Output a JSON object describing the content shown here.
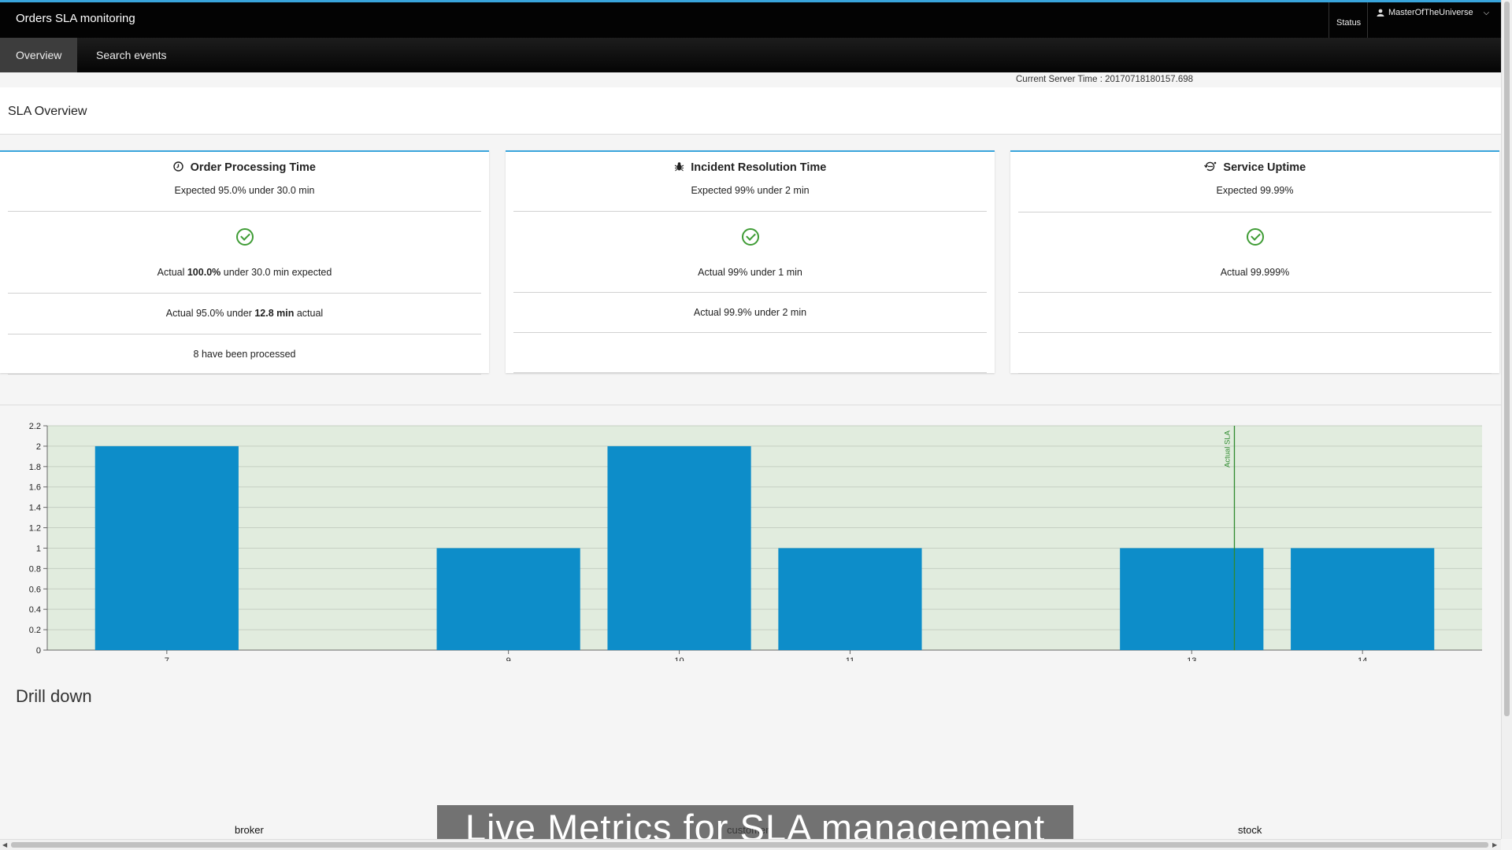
{
  "app": {
    "title": "Orders SLA monitoring",
    "status_label": "Status",
    "user": "MasterOfTheUniverse"
  },
  "nav": {
    "tabs": [
      {
        "label": "Overview",
        "active": true
      },
      {
        "label": "Search events",
        "active": false
      }
    ]
  },
  "server_time": "Current Server Time : 20170718180157.698",
  "sla": {
    "heading": "SLA Overview",
    "cards": [
      {
        "icon": "clock-icon",
        "title": "Order Processing Time",
        "expected": "Expected 95.0% under 30.0 min",
        "status": "ok",
        "line1_pre": "Actual ",
        "line1_bold": "100.0%",
        "line1_post": " under 30.0 min expected",
        "line2_pre": "Actual 95.0% under ",
        "line2_bold": "12.8 min",
        "line2_post": " actual",
        "line3": "8 have been processed"
      },
      {
        "icon": "bug-icon",
        "title": "Incident Resolution Time",
        "expected": "Expected 99% under 2 min",
        "status": "ok",
        "line1": "Actual 99% under 1 min",
        "line2": "Actual 99.9% under 2 min"
      },
      {
        "icon": "uptime-icon",
        "title": "Service Uptime",
        "expected": "Expected 99.99%",
        "status": "ok",
        "line1": "Actual 99.999%"
      }
    ]
  },
  "chart_data": {
    "type": "bar",
    "categories": [
      "7",
      "9",
      "10",
      "11",
      "13",
      "14"
    ],
    "x": [
      7,
      9,
      10,
      11,
      13,
      14
    ],
    "values": [
      2,
      1,
      2,
      1,
      1,
      1
    ],
    "xlim": [
      6.3,
      14.7
    ],
    "ylim": [
      0,
      2.2
    ],
    "yticks": [
      "0",
      "0.2",
      "0.4",
      "0.6",
      "0.8",
      "1",
      "1.2",
      "1.4",
      "1.6",
      "1.8",
      "2",
      "2.2"
    ],
    "sla_line": {
      "x": 13.25,
      "label": "Actual SLA"
    },
    "grid": true,
    "colors": {
      "bar": "#0d8dc9",
      "plot_bg": "#e1ecde",
      "sla_line": "#2e8b2e"
    }
  },
  "drill": {
    "title": "Drill down",
    "labels": [
      "broker",
      "customer",
      "stock"
    ]
  },
  "caption": "Live Metrics for SLA management"
}
